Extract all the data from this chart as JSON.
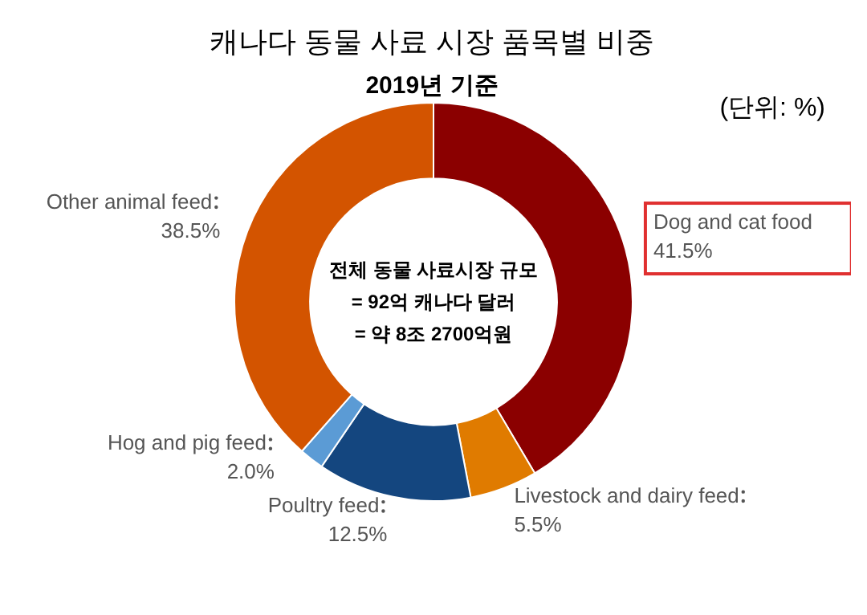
{
  "chart_data": {
    "type": "donut",
    "title": "캐나다 동물 사료 시장 품목별 비중",
    "subtitle": "2019년 기준",
    "categories": [
      "Dog and cat food",
      "Livestock and dairy feed",
      "Poultry feed",
      "Hog and pig feed",
      "Other animal feed"
    ],
    "values": [
      41.5,
      5.5,
      12.5,
      2.0,
      38.5
    ],
    "colors": [
      "#8b0000",
      "#e07b00",
      "#14467f",
      "#5b9bd5",
      "#d35400"
    ],
    "value_labels": [
      "41.5%",
      "5.5%",
      "12.5%",
      "2.0%",
      "38.5%"
    ],
    "annotations": [
      "(단위: %)",
      "전체 동물 사료시장 규모",
      "= 92억 캐나다 달러",
      "= 약 8조 2700억원"
    ]
  }
}
